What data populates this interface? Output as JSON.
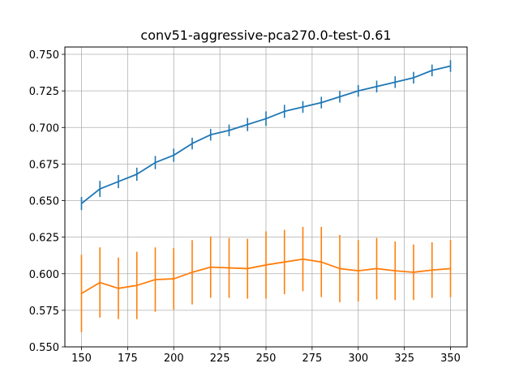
{
  "chart_data": {
    "type": "line",
    "title": "conv51-aggressive-pca270.0-test-0.61",
    "xlabel": "",
    "ylabel": "",
    "xlim": [
      141,
      359
    ],
    "ylim": [
      0.55,
      0.755
    ],
    "grid": true,
    "x_ticks": [
      "150",
      "175",
      "200",
      "225",
      "250",
      "275",
      "300",
      "325",
      "350"
    ],
    "y_ticks": [
      "0.550",
      "0.575",
      "0.600",
      "0.625",
      "0.650",
      "0.675",
      "0.700",
      "0.725",
      "0.750"
    ],
    "x": [
      150,
      160,
      170,
      180,
      190,
      200,
      210,
      220,
      230,
      240,
      250,
      260,
      270,
      280,
      290,
      300,
      310,
      320,
      330,
      340,
      350
    ],
    "series": [
      {
        "color": "#1f77b4",
        "values": [
          0.648,
          0.658,
          0.663,
          0.668,
          0.676,
          0.681,
          0.689,
          0.695,
          0.698,
          0.702,
          0.706,
          0.711,
          0.714,
          0.717,
          0.721,
          0.725,
          0.728,
          0.731,
          0.734,
          0.739,
          0.742
        ],
        "err": [
          0.0045,
          0.0055,
          0.0045,
          0.0045,
          0.0045,
          0.0045,
          0.004,
          0.004,
          0.004,
          0.0045,
          0.005,
          0.0045,
          0.004,
          0.004,
          0.004,
          0.004,
          0.004,
          0.004,
          0.004,
          0.004,
          0.004
        ]
      },
      {
        "color": "#ff7f0e",
        "values": [
          0.5865,
          0.594,
          0.59,
          0.592,
          0.596,
          0.5965,
          0.601,
          0.6045,
          0.604,
          0.6035,
          0.606,
          0.608,
          0.61,
          0.608,
          0.6035,
          0.602,
          0.6035,
          0.602,
          0.601,
          0.6025,
          0.6035
        ],
        "err": [
          0.0265,
          0.024,
          0.021,
          0.023,
          0.022,
          0.021,
          0.022,
          0.021,
          0.0205,
          0.0205,
          0.023,
          0.022,
          0.022,
          0.024,
          0.023,
          0.021,
          0.021,
          0.02,
          0.019,
          0.019,
          0.0195
        ]
      }
    ]
  }
}
